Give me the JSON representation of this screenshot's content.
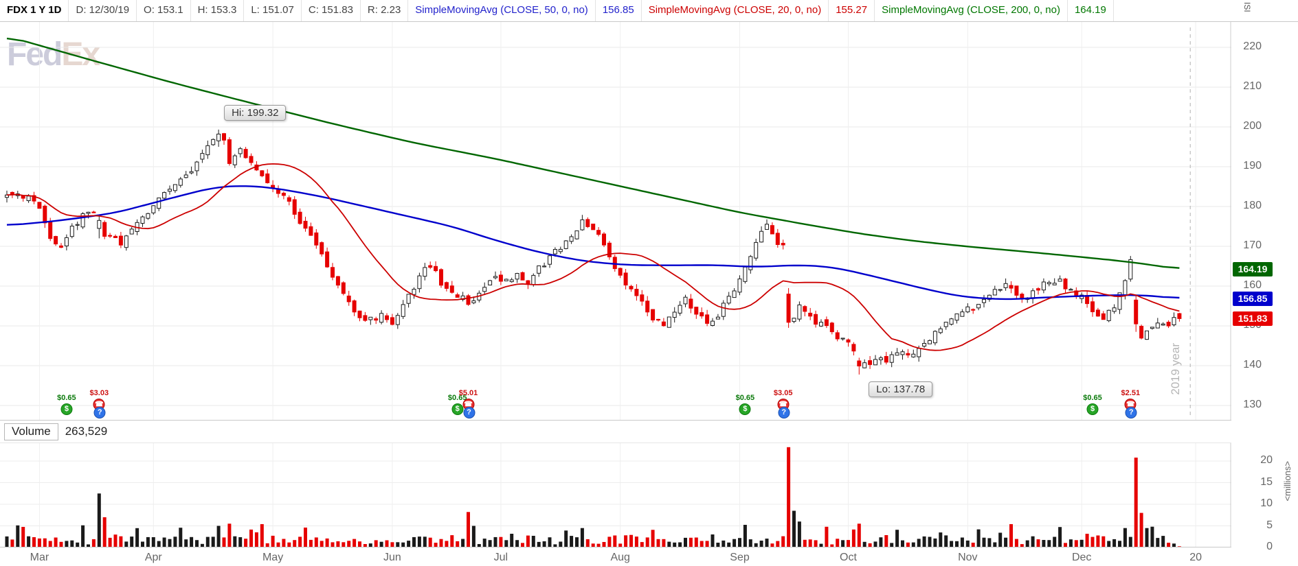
{
  "toolbar": {
    "symbol_block": "FDX 1 Y 1D",
    "fields": [
      "D: 12/30/19",
      "O: 153.1",
      "H: 153.3",
      "L: 151.07",
      "C: 151.83",
      "R: 2.23"
    ],
    "studies": [
      {
        "label": "SimpleMovingAvg (CLOSE, 50, 0, no)",
        "value": "156.85",
        "color": "#2222cc"
      },
      {
        "label": "SimpleMovingAvg (CLOSE, 20, 0, no)",
        "value": "155.27",
        "color": "#cc0000"
      },
      {
        "label": "SimpleMovingAvg (CLOSE, 200, 0, no)",
        "value": "164.19",
        "color": "#007700"
      }
    ]
  },
  "watermark": {
    "part1": "Fed",
    "part2": "Ex"
  },
  "corner_label": "ISI",
  "colors": {
    "up_outline": "#1a1a1a",
    "down": "#e60000",
    "grid": "#e9e9e9",
    "month_grid": "#efefef",
    "axis_text": "#666666"
  },
  "chart_data": {
    "type": "candlestick",
    "symbol": "FDX",
    "timeframe": "1 Y 1D",
    "last_bar": {
      "date": "12/30/19",
      "open": 153.1,
      "high": 153.3,
      "low": 151.07,
      "close": 151.83,
      "range": 2.23
    },
    "y_axis": {
      "ticks": [
        220,
        210,
        200,
        190,
        180,
        170,
        160,
        150,
        140,
        130
      ]
    },
    "months": [
      {
        "label": "Mar",
        "day": 6
      },
      {
        "label": "Apr",
        "day": 27
      },
      {
        "label": "May",
        "day": 49
      },
      {
        "label": "Jun",
        "day": 71
      },
      {
        "label": "Jul",
        "day": 91
      },
      {
        "label": "Aug",
        "day": 113
      },
      {
        "label": "Sep",
        "day": 135
      },
      {
        "label": "Oct",
        "day": 155
      },
      {
        "label": "Nov",
        "day": 177
      },
      {
        "label": "Dec",
        "day": 198
      },
      {
        "label": "20",
        "day": 219
      }
    ],
    "days_total": 217,
    "close_anchors": [
      [
        0,
        182.5
      ],
      [
        2,
        183.5
      ],
      [
        4,
        182
      ],
      [
        6,
        180
      ],
      [
        8,
        172
      ],
      [
        10,
        170.5
      ],
      [
        12,
        175
      ],
      [
        14,
        177.5
      ],
      [
        16,
        179
      ],
      [
        17,
        176.5
      ],
      [
        19,
        172.5
      ],
      [
        21,
        170.5
      ],
      [
        23,
        174
      ],
      [
        25,
        177
      ],
      [
        27,
        180.5
      ],
      [
        29,
        183
      ],
      [
        31,
        185.5
      ],
      [
        33,
        188
      ],
      [
        35,
        191
      ],
      [
        37,
        195
      ],
      [
        39,
        198.2
      ],
      [
        40,
        196
      ],
      [
        41,
        190
      ],
      [
        43,
        194
      ],
      [
        45,
        190.5
      ],
      [
        47,
        187.5
      ],
      [
        49,
        184.5
      ],
      [
        51,
        183
      ],
      [
        53,
        178.5
      ],
      [
        55,
        174.5
      ],
      [
        57,
        171
      ],
      [
        59,
        165
      ],
      [
        61,
        160
      ],
      [
        63,
        156
      ],
      [
        65,
        152.5
      ],
      [
        67,
        151.5
      ],
      [
        69,
        152.5
      ],
      [
        71,
        151
      ],
      [
        73,
        155
      ],
      [
        75,
        160
      ],
      [
        77,
        164
      ],
      [
        78,
        165.5
      ],
      [
        80,
        161
      ],
      [
        82,
        158
      ],
      [
        84,
        157
      ],
      [
        85,
        155.5
      ],
      [
        86,
        157
      ],
      [
        88,
        160
      ],
      [
        90,
        162
      ],
      [
        92,
        161
      ],
      [
        94,
        163
      ],
      [
        96,
        161
      ],
      [
        98,
        164.5
      ],
      [
        100,
        167
      ],
      [
        102,
        170
      ],
      [
        104,
        173
      ],
      [
        106,
        176
      ],
      [
        108,
        173.5
      ],
      [
        110,
        171
      ],
      [
        112,
        164
      ],
      [
        114,
        160
      ],
      [
        116,
        157.5
      ],
      [
        118,
        154
      ],
      [
        119,
        151.5
      ],
      [
        121,
        150.5
      ],
      [
        123,
        154
      ],
      [
        125,
        156.5
      ],
      [
        127,
        153
      ],
      [
        129,
        150.5
      ],
      [
        131,
        153
      ],
      [
        133,
        157
      ],
      [
        135,
        162
      ],
      [
        137,
        168
      ],
      [
        139,
        174
      ],
      [
        140,
        176.2
      ],
      [
        141,
        173.5
      ],
      [
        142,
        171
      ],
      [
        143,
        170.5
      ],
      [
        144,
        150.9
      ],
      [
        145,
        152
      ],
      [
        146,
        154.5
      ],
      [
        147,
        153
      ],
      [
        149,
        151
      ],
      [
        151,
        149.5
      ],
      [
        153,
        147.5
      ],
      [
        155,
        146
      ],
      [
        156,
        143
      ],
      [
        157,
        139.9
      ],
      [
        158,
        141.5
      ],
      [
        159,
        139.5
      ],
      [
        160,
        142
      ],
      [
        162,
        141
      ],
      [
        164,
        143.5
      ],
      [
        166,
        142.5
      ],
      [
        168,
        144.5
      ],
      [
        170,
        147
      ],
      [
        172,
        150
      ],
      [
        174,
        152.5
      ],
      [
        176,
        153.5
      ],
      [
        178,
        154.5
      ],
      [
        180,
        157
      ],
      [
        182,
        159
      ],
      [
        184,
        160
      ],
      [
        186,
        158
      ],
      [
        188,
        157
      ],
      [
        190,
        159.5
      ],
      [
        192,
        161.5
      ],
      [
        194,
        161
      ],
      [
        196,
        159
      ],
      [
        198,
        157
      ],
      [
        200,
        153.5
      ],
      [
        202,
        151.5
      ],
      [
        204,
        155
      ],
      [
        205,
        158
      ],
      [
        206,
        162
      ],
      [
        207,
        166.5
      ],
      [
        208,
        150.5
      ],
      [
        209,
        147.5
      ],
      [
        210,
        148.5
      ],
      [
        212,
        150.5
      ],
      [
        214,
        149.5
      ],
      [
        215,
        152.5
      ],
      [
        216,
        151.83
      ]
    ],
    "forced_candles": {
      "17": [
        174.5,
        178,
        172,
        176.5
      ],
      "18": [
        176,
        176.5,
        171.8,
        172.5
      ],
      "39": [
        196.5,
        199.32,
        195,
        198.2
      ],
      "144": [
        158,
        159.5,
        149.5,
        150.9
      ],
      "157": [
        141.2,
        142,
        137.78,
        139.9
      ],
      "208": [
        156.5,
        157.5,
        148.5,
        150.5
      ],
      "216": [
        153.1,
        153.3,
        151.07,
        151.83
      ]
    },
    "annotations": {
      "high": {
        "label": "Hi: 199.32",
        "day": 39,
        "price": 199.32
      },
      "low": {
        "label": "Lo: 137.78",
        "day": 157,
        "price": 137.78
      }
    },
    "overlays": {
      "sma200": {
        "name": "SimpleMovingAvg (CLOSE, 200, 0, no)",
        "last": 164.19,
        "color": "#006600",
        "anchors": [
          [
            0,
            222.8
          ],
          [
            15,
            217
          ],
          [
            30,
            211.3
          ],
          [
            45,
            206
          ],
          [
            60,
            200.8
          ],
          [
            75,
            196
          ],
          [
            90,
            192
          ],
          [
            105,
            187.5
          ],
          [
            120,
            183
          ],
          [
            135,
            178.5
          ],
          [
            148,
            175.3
          ],
          [
            158,
            173
          ],
          [
            168,
            171.2
          ],
          [
            178,
            169.8
          ],
          [
            188,
            168.6
          ],
          [
            198,
            167.3
          ],
          [
            206,
            166.2
          ],
          [
            212,
            165.1
          ],
          [
            216,
            164.2
          ]
        ]
      },
      "sma50": {
        "name": "SimpleMovingAvg (CLOSE, 50, 0, no)",
        "last": 156.85,
        "color": "#0000cc",
        "anchors": [
          [
            0,
            175.2
          ],
          [
            10,
            176.5
          ],
          [
            20,
            178.4
          ],
          [
            30,
            182
          ],
          [
            38,
            184.8
          ],
          [
            44,
            185.3
          ],
          [
            50,
            184.5
          ],
          [
            58,
            182.5
          ],
          [
            66,
            180
          ],
          [
            74,
            177.5
          ],
          [
            82,
            175
          ],
          [
            90,
            171.5
          ],
          [
            98,
            168.5
          ],
          [
            106,
            166.3
          ],
          [
            114,
            165.3
          ],
          [
            122,
            165.2
          ],
          [
            130,
            165.3
          ],
          [
            138,
            164.8
          ],
          [
            146,
            165.3
          ],
          [
            152,
            164.8
          ],
          [
            158,
            163
          ],
          [
            164,
            161
          ],
          [
            170,
            159
          ],
          [
            176,
            157.3
          ],
          [
            184,
            156.6
          ],
          [
            192,
            157.2
          ],
          [
            200,
            157.6
          ],
          [
            208,
            157.8
          ],
          [
            213,
            157.3
          ],
          [
            216,
            156.85
          ]
        ]
      },
      "sma20": {
        "name": "SimpleMovingAvg (CLOSE, 20, 0, no)",
        "last": 155.27,
        "color": "#cc0000",
        "computed_from": "closes",
        "period": 20
      }
    },
    "price_labels": [
      {
        "value": "164.19",
        "price": 164.19,
        "bg": "#006600"
      },
      {
        "value": "156.85",
        "price": 156.85,
        "bg": "#0000cc"
      },
      {
        "value": "151.83",
        "price": 151.83,
        "bg": "#e60000"
      }
    ],
    "events": {
      "glyphs": {
        "dividend": "$",
        "call": "☎",
        "note": "?"
      },
      "dividends": [
        {
          "day": 11,
          "label": "$0.65"
        },
        {
          "day": 83,
          "label": "$0.65"
        },
        {
          "day": 136,
          "label": "$0.65"
        },
        {
          "day": 200,
          "label": "$0.65"
        }
      ],
      "earnings": [
        {
          "day": 17,
          "label": "$3.03"
        },
        {
          "day": 85,
          "label": "$5.01"
        },
        {
          "day": 143,
          "label": "$3.05"
        },
        {
          "day": 207,
          "label": "$2.51"
        }
      ]
    },
    "year_divider": {
      "day": 218,
      "label": "2019 year"
    },
    "volume": {
      "title": "Volume",
      "last_value": "263,529",
      "axis_ticks": [
        20,
        15,
        10,
        5,
        0
      ],
      "unit_label": "<millions>",
      "forced": [
        [
          17,
          12.5
        ],
        [
          18,
          7
        ],
        [
          39,
          5
        ],
        [
          41,
          5.5
        ],
        [
          85,
          8.2
        ],
        [
          86,
          5
        ],
        [
          106,
          4.5
        ],
        [
          144,
          23.2
        ],
        [
          145,
          8.5
        ],
        [
          146,
          6
        ],
        [
          157,
          5.5
        ],
        [
          206,
          4.5
        ],
        [
          208,
          20.8
        ],
        [
          209,
          8
        ],
        [
          210,
          4.5
        ],
        [
          214,
          1.1
        ],
        [
          215,
          0.9
        ],
        [
          216,
          0.2635
        ]
      ]
    }
  }
}
